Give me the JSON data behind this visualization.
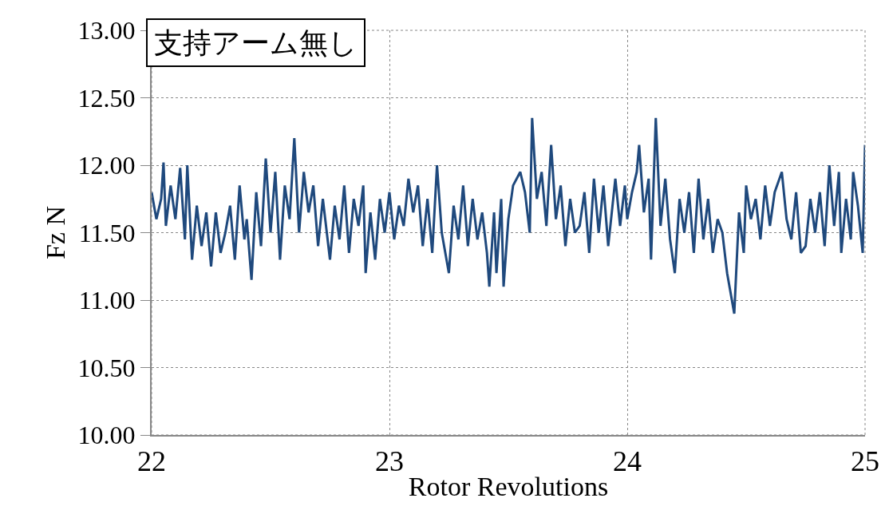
{
  "chart_data": {
    "type": "line",
    "xlabel": "Rotor Revolutions",
    "ylabel": "Fz N",
    "annotations": [
      "支持アーム無し"
    ],
    "xlim": [
      22,
      25
    ],
    "xticks": [
      22,
      23,
      24,
      25
    ],
    "ylim": [
      10,
      13
    ],
    "yticks": [
      {
        "value": 10,
        "label": "10.00"
      },
      {
        "value": 10.5,
        "label": "10.50"
      },
      {
        "value": 11,
        "label": "11.00"
      },
      {
        "value": 11.5,
        "label": "11.50"
      },
      {
        "value": 12,
        "label": "12.00"
      },
      {
        "value": 12.5,
        "label": "12.50"
      },
      {
        "value": 13,
        "label": "13.00"
      }
    ],
    "grid": true,
    "marker": "none",
    "line_style": "solid",
    "x": [
      22.0,
      22.02,
      22.04,
      22.05,
      22.06,
      22.08,
      22.1,
      22.12,
      22.14,
      22.15,
      22.17,
      22.19,
      22.21,
      22.23,
      22.25,
      22.27,
      22.29,
      22.31,
      22.33,
      22.35,
      22.37,
      22.39,
      22.4,
      22.42,
      22.44,
      22.46,
      22.48,
      22.5,
      22.52,
      22.54,
      22.56,
      22.58,
      22.6,
      22.62,
      22.64,
      22.66,
      22.68,
      22.7,
      22.72,
      22.74,
      22.75,
      22.77,
      22.79,
      22.81,
      22.83,
      22.85,
      22.87,
      22.89,
      22.9,
      22.92,
      22.94,
      22.96,
      22.98,
      23.0,
      23.02,
      23.04,
      23.06,
      23.08,
      23.1,
      23.12,
      23.14,
      23.16,
      23.18,
      23.2,
      23.22,
      23.25,
      23.27,
      23.29,
      23.31,
      23.33,
      23.35,
      23.37,
      23.39,
      23.41,
      23.42,
      23.44,
      23.45,
      23.47,
      23.48,
      23.5,
      23.52,
      23.55,
      23.57,
      23.59,
      23.6,
      23.62,
      23.64,
      23.66,
      23.68,
      23.7,
      23.72,
      23.74,
      23.76,
      23.78,
      23.8,
      23.82,
      23.84,
      23.86,
      23.88,
      23.9,
      23.92,
      23.95,
      23.97,
      23.99,
      24.0,
      24.02,
      24.04,
      24.05,
      24.07,
      24.09,
      24.1,
      24.12,
      24.14,
      24.16,
      24.18,
      24.2,
      24.22,
      24.24,
      24.26,
      24.28,
      24.3,
      24.32,
      24.34,
      24.36,
      24.38,
      24.4,
      24.42,
      24.45,
      24.47,
      24.49,
      24.5,
      24.52,
      24.54,
      24.56,
      24.58,
      24.6,
      24.62,
      24.65,
      24.67,
      24.69,
      24.71,
      24.73,
      24.75,
      24.77,
      24.79,
      24.81,
      24.83,
      24.85,
      24.87,
      24.89,
      24.9,
      24.92,
      24.94,
      24.95,
      24.97,
      24.99,
      25.0
    ],
    "series": [
      {
        "color": "#1f497d",
        "values": [
          11.8,
          11.6,
          11.75,
          12.02,
          11.55,
          11.85,
          11.6,
          11.98,
          11.45,
          12.0,
          11.3,
          11.7,
          11.4,
          11.65,
          11.25,
          11.65,
          11.35,
          11.5,
          11.7,
          11.3,
          11.85,
          11.45,
          11.6,
          11.15,
          11.8,
          11.4,
          12.05,
          11.5,
          11.95,
          11.3,
          11.85,
          11.6,
          12.2,
          11.5,
          11.95,
          11.65,
          11.85,
          11.4,
          11.75,
          11.45,
          11.3,
          11.7,
          11.45,
          11.85,
          11.35,
          11.75,
          11.55,
          11.85,
          11.2,
          11.65,
          11.3,
          11.75,
          11.5,
          11.8,
          11.45,
          11.7,
          11.55,
          11.9,
          11.65,
          11.85,
          11.4,
          11.75,
          11.35,
          12.0,
          11.5,
          11.2,
          11.7,
          11.45,
          11.85,
          11.4,
          11.75,
          11.45,
          11.65,
          11.35,
          11.1,
          11.65,
          11.2,
          11.75,
          11.1,
          11.6,
          11.85,
          11.95,
          11.8,
          11.5,
          12.35,
          11.75,
          11.95,
          11.55,
          12.15,
          11.6,
          11.85,
          11.4,
          11.75,
          11.5,
          11.55,
          11.8,
          11.35,
          11.9,
          11.5,
          11.85,
          11.4,
          11.9,
          11.55,
          11.85,
          11.6,
          11.8,
          11.95,
          12.15,
          11.65,
          11.9,
          11.3,
          12.35,
          11.55,
          11.9,
          11.45,
          11.2,
          11.75,
          11.5,
          11.8,
          11.35,
          11.9,
          11.45,
          11.75,
          11.35,
          11.6,
          11.5,
          11.2,
          10.9,
          11.65,
          11.35,
          11.85,
          11.6,
          11.75,
          11.45,
          11.85,
          11.55,
          11.8,
          11.95,
          11.6,
          11.45,
          11.8,
          11.35,
          11.4,
          11.75,
          11.5,
          11.8,
          11.4,
          12.0,
          11.55,
          11.95,
          11.35,
          11.75,
          11.45,
          11.95,
          11.7,
          11.35,
          12.15
        ]
      }
    ]
  }
}
